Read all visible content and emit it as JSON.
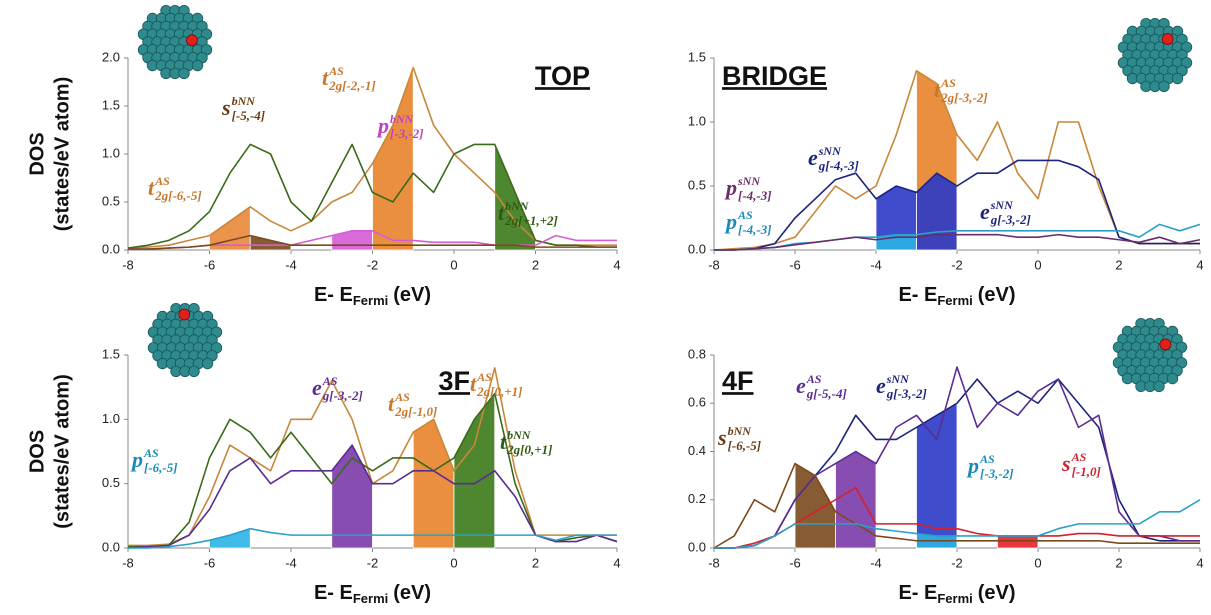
{
  "chart_data": [
    {
      "type": "line",
      "title": "TOP",
      "x_label": {
        "main": "E- E",
        "sub": "Fermi",
        "unit": "(eV)"
      },
      "y_label": [
        "DOS",
        "(states/eV atom)"
      ],
      "x": [
        -8,
        -7.5,
        -7,
        -6.5,
        -6,
        -5.5,
        -5,
        -4.5,
        -4,
        -3.5,
        -3,
        -2.5,
        -2,
        -1.5,
        -1,
        -0.5,
        0,
        0.5,
        1,
        1.5,
        2,
        2.5,
        3,
        3.5,
        4
      ],
      "xlim": [
        -8,
        4
      ],
      "xticks": [
        -8,
        -6,
        -4,
        -2,
        0,
        2,
        4
      ],
      "ylim": [
        0,
        2
      ],
      "yticks": [
        {
          "value": 0,
          "label": "0.0"
        },
        {
          "value": 0.5,
          "label": "0.5"
        },
        {
          "value": 1,
          "label": "1.0"
        },
        {
          "value": 1.5,
          "label": "1.5"
        },
        {
          "value": 2,
          "label": "2.0"
        }
      ],
      "series": [
        {
          "color": "#c8873a",
          "values": [
            0.02,
            0.03,
            0.05,
            0.1,
            0.15,
            0.3,
            0.45,
            0.3,
            0.2,
            0.3,
            0.5,
            0.6,
            0.9,
            1.3,
            1.9,
            1.3,
            1.0,
            0.8,
            0.6,
            0.3,
            0.1,
            0.05,
            0.05,
            0.05,
            0.05
          ]
        },
        {
          "color": "#3b6a1a",
          "values": [
            0.02,
            0.05,
            0.1,
            0.2,
            0.4,
            0.8,
            1.1,
            1.0,
            0.5,
            0.3,
            0.7,
            1.1,
            0.6,
            0.5,
            0.8,
            0.6,
            1.0,
            1.1,
            1.1,
            0.6,
            0.1,
            0.05,
            0.05,
            0.03,
            0.03
          ]
        },
        {
          "color": "#d65bd6",
          "values": [
            0.01,
            0.01,
            0.02,
            0.03,
            0.05,
            0.05,
            0.05,
            0.05,
            0.05,
            0.1,
            0.15,
            0.2,
            0.2,
            0.1,
            0.1,
            0.08,
            0.08,
            0.08,
            0.05,
            0.05,
            0.05,
            0.15,
            0.1,
            0.1,
            0.1
          ]
        },
        {
          "color": "#7b4a1c",
          "values": [
            0.01,
            0.01,
            0.02,
            0.03,
            0.05,
            0.1,
            0.15,
            0.1,
            0.05,
            0.05,
            0.05,
            0.05,
            0.05,
            0.05,
            0.05,
            0.05,
            0.05,
            0.05,
            0.05,
            0.05,
            0.03,
            0.03,
            0.03,
            0.03,
            0.03
          ]
        }
      ],
      "areas": [
        {
          "color": "#e8873a",
          "x": [
            -6,
            -5.5,
            -5
          ],
          "values": [
            0.15,
            0.3,
            0.45
          ]
        },
        {
          "color": "#7b4a1c",
          "x": [
            -5,
            -4.5,
            -4
          ],
          "values": [
            0.15,
            0.1,
            0.05
          ]
        },
        {
          "color": "#d65bd6",
          "x": [
            -3,
            -2.5,
            -2
          ],
          "values": [
            0.15,
            0.2,
            0.2
          ]
        },
        {
          "color": "#e8832a",
          "x": [
            -2,
            -1.5,
            -1
          ],
          "values": [
            0.9,
            1.3,
            1.9
          ]
        },
        {
          "color": "#3b7a1a",
          "x": [
            1,
            1.5,
            2
          ],
          "values": [
            1.1,
            0.6,
            0.1
          ]
        }
      ],
      "annotations": [
        {
          "base": "t",
          "sup": "AS",
          "sub": "2g[-6,-5]",
          "color": "#c8772a"
        },
        {
          "base": "s",
          "sup": "bNN",
          "sub": "[-5,-4]",
          "color": "#6b3a10"
        },
        {
          "base": "p",
          "sup": "bNN",
          "sub": "[-3,-2]",
          "color": "#c040c0"
        },
        {
          "base": "t",
          "sup": "AS",
          "sub": "2g[-2,-1]",
          "color": "#c8772a"
        },
        {
          "base": "t",
          "sup": "bNN",
          "sub": "2g[+1,+2]",
          "color": "#2f5a12"
        }
      ]
    },
    {
      "type": "line",
      "title": "BRIDGE",
      "x_label": {
        "main": "E- E",
        "sub": "Fermi",
        "unit": "(eV)"
      },
      "x": [
        -8,
        -7.5,
        -7,
        -6.5,
        -6,
        -5.5,
        -5,
        -4.5,
        -4,
        -3.5,
        -3,
        -2.5,
        -2,
        -1.5,
        -1,
        -0.5,
        0,
        0.5,
        1,
        1.5,
        2,
        2.5,
        3,
        3.5,
        4
      ],
      "xlim": [
        -8,
        4
      ],
      "xticks": [
        -8,
        -6,
        -4,
        -2,
        0,
        2,
        4
      ],
      "ylim": [
        0,
        1.5
      ],
      "yticks": [
        {
          "value": 0,
          "label": "0.0"
        },
        {
          "value": 0.5,
          "label": "0.5"
        },
        {
          "value": 1,
          "label": "1.0"
        },
        {
          "value": 1.5,
          "label": "1.5"
        }
      ],
      "series": [
        {
          "color": "#c8873a",
          "values": [
            0,
            0.01,
            0.02,
            0.05,
            0.1,
            0.3,
            0.5,
            0.4,
            0.5,
            0.9,
            1.4,
            1.3,
            0.9,
            0.7,
            1.0,
            0.6,
            0.4,
            1.0,
            1.0,
            0.5,
            0.1,
            0.05,
            0.05,
            0.05,
            0.05
          ]
        },
        {
          "color": "#1c237e",
          "values": [
            0,
            0,
            0.01,
            0.05,
            0.25,
            0.4,
            0.55,
            0.6,
            0.4,
            0.5,
            0.45,
            0.6,
            0.5,
            0.6,
            0.6,
            0.7,
            0.7,
            0.7,
            0.65,
            0.55,
            0.1,
            0.05,
            0.05,
            0.05,
            0.05
          ]
        },
        {
          "color": "#2aa0c8",
          "values": [
            0,
            0,
            0.01,
            0.02,
            0.05,
            0.06,
            0.08,
            0.1,
            0.1,
            0.12,
            0.12,
            0.14,
            0.15,
            0.15,
            0.15,
            0.15,
            0.15,
            0.15,
            0.15,
            0.15,
            0.15,
            0.1,
            0.2,
            0.15,
            0.2
          ]
        },
        {
          "color": "#6a2c6a",
          "values": [
            0,
            0,
            0.01,
            0.02,
            0.04,
            0.06,
            0.08,
            0.1,
            0.08,
            0.1,
            0.1,
            0.12,
            0.12,
            0.12,
            0.12,
            0.1,
            0.1,
            0.12,
            0.1,
            0.1,
            0.08,
            0.06,
            0.1,
            0.05,
            0.08
          ]
        }
      ],
      "areas": [
        {
          "color": "#2a3ac8",
          "x": [
            -4,
            -3.5,
            -3
          ],
          "values": [
            0.4,
            0.5,
            0.45
          ]
        },
        {
          "color": "#e8832a",
          "x": [
            -3,
            -2.5,
            -2
          ],
          "values": [
            1.4,
            1.3,
            0.9
          ]
        },
        {
          "color": "#2a3ac8",
          "x": [
            -3,
            -2.5,
            -2
          ],
          "values": [
            0.45,
            0.6,
            0.5
          ]
        },
        {
          "color": "#2ab4e8",
          "x": [
            -4,
            -3.5,
            -3
          ],
          "values": [
            0.1,
            0.12,
            0.12
          ]
        }
      ],
      "annotations": [
        {
          "base": "t",
          "sup": "AS",
          "sub": "2g[-3,-2]",
          "color": "#c8772a"
        },
        {
          "base": "e",
          "sup": "sNN",
          "sub": "g[-4,-3]",
          "color": "#1c237e"
        },
        {
          "base": "p",
          "sup": "sNN",
          "sub": "[-4,-3]",
          "color": "#6a2c6a"
        },
        {
          "base": "p",
          "sup": "AS",
          "sub": "[-4,-3]",
          "color": "#1a8ab8"
        },
        {
          "base": "e",
          "sup": "sNN",
          "sub": "g[-3,-2]",
          "color": "#1c237e"
        }
      ]
    },
    {
      "type": "line",
      "title": "3F",
      "x_label": {
        "main": "E- E",
        "sub": "Fermi",
        "unit": "(eV)"
      },
      "y_label": [
        "DOS",
        "(states/eV atom)"
      ],
      "x": [
        -8,
        -7.5,
        -7,
        -6.5,
        -6,
        -5.5,
        -5,
        -4.5,
        -4,
        -3.5,
        -3,
        -2.5,
        -2,
        -1.5,
        -1,
        -0.5,
        0,
        0.5,
        1,
        1.5,
        2,
        2.5,
        3,
        3.5,
        4
      ],
      "xlim": [
        -8,
        4
      ],
      "xticks": [
        -8,
        -6,
        -4,
        -2,
        0,
        2,
        4
      ],
      "ylim": [
        0,
        1.5
      ],
      "yticks": [
        {
          "value": 0,
          "label": "0.0"
        },
        {
          "value": 0.5,
          "label": "0.5"
        },
        {
          "value": 1,
          "label": "1.0"
        },
        {
          "value": 1.5,
          "label": "1.5"
        }
      ],
      "series": [
        {
          "color": "#c8873a",
          "values": [
            0.02,
            0.02,
            0.03,
            0.1,
            0.4,
            0.8,
            0.7,
            0.6,
            1.0,
            1.0,
            1.3,
            1.0,
            0.5,
            0.6,
            0.9,
            1.0,
            0.6,
            0.8,
            1.4,
            0.6,
            0.1,
            0.1,
            0.1,
            0.1,
            0.1
          ]
        },
        {
          "color": "#3b6a1a",
          "values": [
            0.01,
            0.01,
            0.02,
            0.2,
            0.7,
            1.0,
            0.9,
            0.7,
            0.9,
            0.7,
            0.5,
            0.7,
            0.6,
            0.7,
            0.7,
            0.6,
            0.7,
            1.0,
            1.2,
            0.5,
            0.1,
            0.05,
            0.08,
            0.1,
            0.05
          ]
        },
        {
          "color": "#5b2c91",
          "values": [
            0,
            0.01,
            0.02,
            0.1,
            0.3,
            0.6,
            0.7,
            0.5,
            0.6,
            0.6,
            0.6,
            0.8,
            0.5,
            0.5,
            0.6,
            0.6,
            0.5,
            0.5,
            0.6,
            0.4,
            0.1,
            0.05,
            0.05,
            0.1,
            0.05
          ]
        },
        {
          "color": "#2aa0c8",
          "values": [
            0,
            0,
            0.01,
            0.03,
            0.06,
            0.1,
            0.15,
            0.12,
            0.1,
            0.1,
            0.1,
            0.1,
            0.1,
            0.1,
            0.1,
            0.1,
            0.1,
            0.1,
            0.1,
            0.1,
            0.1,
            0.06,
            0.1,
            0.1,
            0.1
          ]
        }
      ],
      "areas": [
        {
          "color": "#2ab4e8",
          "x": [
            -6,
            -5.5,
            -5
          ],
          "values": [
            0.06,
            0.1,
            0.15
          ]
        },
        {
          "color": "#7a3aa8",
          "x": [
            -3,
            -2.5,
            -2
          ],
          "values": [
            0.6,
            0.8,
            0.5
          ]
        },
        {
          "color": "#e8832a",
          "x": [
            -1,
            -0.5,
            0
          ],
          "values": [
            0.9,
            1.0,
            0.6
          ]
        },
        {
          "color": "#3b7a1a",
          "x": [
            0,
            0.5,
            1
          ],
          "values": [
            0.7,
            1.0,
            1.2
          ]
        }
      ],
      "annotations": [
        {
          "base": "p",
          "sup": "AS",
          "sub": "[-6,-5]",
          "color": "#1a8ab8"
        },
        {
          "base": "e",
          "sup": "AS",
          "sub": "g[-3,-2]",
          "color": "#5b2c91"
        },
        {
          "base": "t",
          "sup": "AS",
          "sub": "2g[-1,0]",
          "color": "#c8772a"
        },
        {
          "base": "t",
          "sup": "AS",
          "sub": "2g[0,+1]",
          "color": "#c8772a"
        },
        {
          "base": "t",
          "sup": "bNN",
          "sub": "2g[0,+1]",
          "color": "#2f5a12"
        }
      ]
    },
    {
      "type": "line",
      "title": "4F",
      "x_label": {
        "main": "E- E",
        "sub": "Fermi",
        "unit": "(eV)"
      },
      "x": [
        -8,
        -7.5,
        -7,
        -6.5,
        -6,
        -5.5,
        -5,
        -4.5,
        -4,
        -3.5,
        -3,
        -2.5,
        -2,
        -1.5,
        -1,
        -0.5,
        0,
        0.5,
        1,
        1.5,
        2,
        2.5,
        3,
        3.5,
        4
      ],
      "xlim": [
        -8,
        4
      ],
      "xticks": [
        -8,
        -6,
        -4,
        -2,
        0,
        2,
        4
      ],
      "ylim": [
        0,
        0.8
      ],
      "yticks": [
        {
          "value": 0,
          "label": "0.0"
        },
        {
          "value": 0.2,
          "label": "0.2"
        },
        {
          "value": 0.4,
          "label": "0.4"
        },
        {
          "value": 0.6,
          "label": "0.6"
        },
        {
          "value": 0.8,
          "label": "0.8"
        }
      ],
      "series": [
        {
          "color": "#1c237e",
          "values": [
            0,
            0,
            0.01,
            0.05,
            0.2,
            0.3,
            0.4,
            0.55,
            0.45,
            0.45,
            0.5,
            0.55,
            0.6,
            0.7,
            0.6,
            0.65,
            0.6,
            0.7,
            0.6,
            0.5,
            0.2,
            0.05,
            0.03,
            0.03,
            0.03
          ]
        },
        {
          "color": "#5b2c91",
          "values": [
            0,
            0,
            0.01,
            0.05,
            0.2,
            0.3,
            0.35,
            0.4,
            0.35,
            0.5,
            0.55,
            0.45,
            0.75,
            0.5,
            0.6,
            0.55,
            0.65,
            0.7,
            0.5,
            0.55,
            0.15,
            0.05,
            0.05,
            0.03,
            0.03
          ]
        },
        {
          "color": "#7b4a1c",
          "values": [
            0,
            0.05,
            0.2,
            0.15,
            0.35,
            0.3,
            0.15,
            0.1,
            0.05,
            0.04,
            0.03,
            0.03,
            0.03,
            0.03,
            0.03,
            0.03,
            0.03,
            0.03,
            0.03,
            0.03,
            0.02,
            0.02,
            0.02,
            0.02,
            0.02
          ]
        },
        {
          "color": "#d4202a",
          "values": [
            0,
            0,
            0.02,
            0.05,
            0.1,
            0.15,
            0.2,
            0.25,
            0.1,
            0.1,
            0.1,
            0.08,
            0.08,
            0.06,
            0.05,
            0.05,
            0.05,
            0.05,
            0.06,
            0.06,
            0.05,
            0.05,
            0.05,
            0.05,
            0.05
          ]
        },
        {
          "color": "#2aa0c8",
          "values": [
            0,
            0,
            0.01,
            0.05,
            0.1,
            0.1,
            0.1,
            0.1,
            0.08,
            0.07,
            0.06,
            0.05,
            0.05,
            0.05,
            0.05,
            0.05,
            0.05,
            0.08,
            0.1,
            0.1,
            0.1,
            0.1,
            0.15,
            0.15,
            0.2
          ]
        }
      ],
      "areas": [
        {
          "color": "#7b4a1c",
          "x": [
            -6,
            -5.5,
            -5
          ],
          "values": [
            0.35,
            0.3,
            0.15
          ]
        },
        {
          "color": "#7a3aa8",
          "x": [
            -5,
            -4.5,
            -4
          ],
          "values": [
            0.35,
            0.4,
            0.35
          ]
        },
        {
          "color": "#2a3ac8",
          "x": [
            -3,
            -2.5,
            -2
          ],
          "values": [
            0.5,
            0.55,
            0.6
          ]
        },
        {
          "color": "#2ab4e8",
          "x": [
            -3,
            -2.5,
            -2
          ],
          "values": [
            0.06,
            0.05,
            0.05
          ]
        },
        {
          "color": "#e8202a",
          "x": [
            -1,
            -0.5,
            0
          ],
          "values": [
            0.05,
            0.05,
            0.05
          ]
        }
      ],
      "annotations": [
        {
          "base": "s",
          "sup": "bNN",
          "sub": "[-6,-5]",
          "color": "#6b3a10"
        },
        {
          "base": "e",
          "sup": "AS",
          "sub": "g[-5,-4]",
          "color": "#5b2c91"
        },
        {
          "base": "e",
          "sup": "sNN",
          "sub": "g[-3,-2]",
          "color": "#1c237e"
        },
        {
          "base": "p",
          "sup": "AS",
          "sub": "[-3,-2]",
          "color": "#1a8ab8"
        },
        {
          "base": "s",
          "sup": "AS",
          "sub": "[-1,0]",
          "color": "#d4202a"
        }
      ]
    }
  ]
}
